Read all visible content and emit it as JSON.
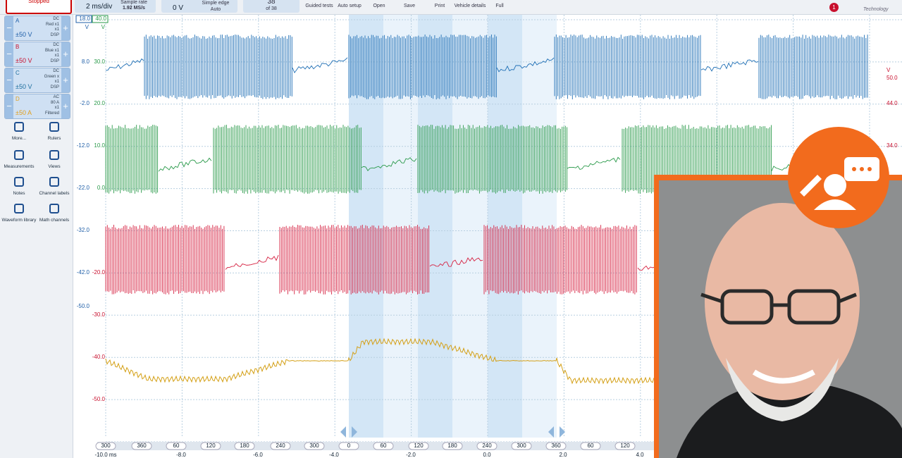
{
  "toolbar": {
    "status": "Stopped",
    "timebase": "2 ms/div",
    "sample_rate_label": "Sample rate",
    "sample_rate": "1.92 MS/s",
    "trigger_level": "0 V",
    "trigger_type": "Simple edge",
    "trigger_mode": "Auto",
    "buffer": "38",
    "buffer_of": "of 38",
    "buttons": [
      "Guided tests",
      "Auto setup",
      "Open",
      "Save",
      "Print",
      "Vehicle details",
      "Full"
    ],
    "notification": "1",
    "brand": "Technology"
  },
  "channels": [
    {
      "letter": "A",
      "coupling": "DC",
      "probe": "Red x1",
      "gain": "x1",
      "filter": "DSP",
      "range": "±50 V"
    },
    {
      "letter": "B",
      "coupling": "DC",
      "probe": "Blue x1",
      "gain": "x1",
      "filter": "DSP",
      "range": "±50 V"
    },
    {
      "letter": "C",
      "coupling": "DC",
      "probe": "Green x",
      "gain": "x1",
      "filter": "DSP",
      "range": "±50 V"
    },
    {
      "letter": "D",
      "coupling": "AC",
      "probe": "80 A",
      "gain": "x1",
      "filter": "Filtered",
      "range": "±50 A"
    }
  ],
  "tools": [
    "More...",
    "Rulers",
    "Measurements",
    "Views",
    "Notes",
    "Channel labels",
    "Waveform library",
    "Math channels"
  ],
  "axes": {
    "left_top": "18.0",
    "left_top2": "40.0",
    "left_unit": "V",
    "left_unit2": "V",
    "left_a": [
      "8.0",
      "-2.0",
      "-12.0",
      "-22.0",
      "-32.0",
      "-42.0",
      "-50.0"
    ],
    "left_b": [
      "30.0",
      "20.0",
      "10.0",
      "0.0",
      "-20.0",
      "-30.0",
      "-40.0",
      "-50.0"
    ],
    "right_unit": "V",
    "right": [
      "50.0",
      "44.0",
      "34.0"
    ],
    "ruler": [
      "300",
      "360",
      "60",
      "120",
      "180",
      "240",
      "300",
      "0",
      "60",
      "120",
      "180",
      "240",
      "300",
      "360",
      "60",
      "120"
    ],
    "time": [
      "-10.0 ms",
      "-8.0",
      "-6.0",
      "-4.0",
      "-2.0",
      "0.0",
      "2.0",
      "4.0"
    ]
  }
}
